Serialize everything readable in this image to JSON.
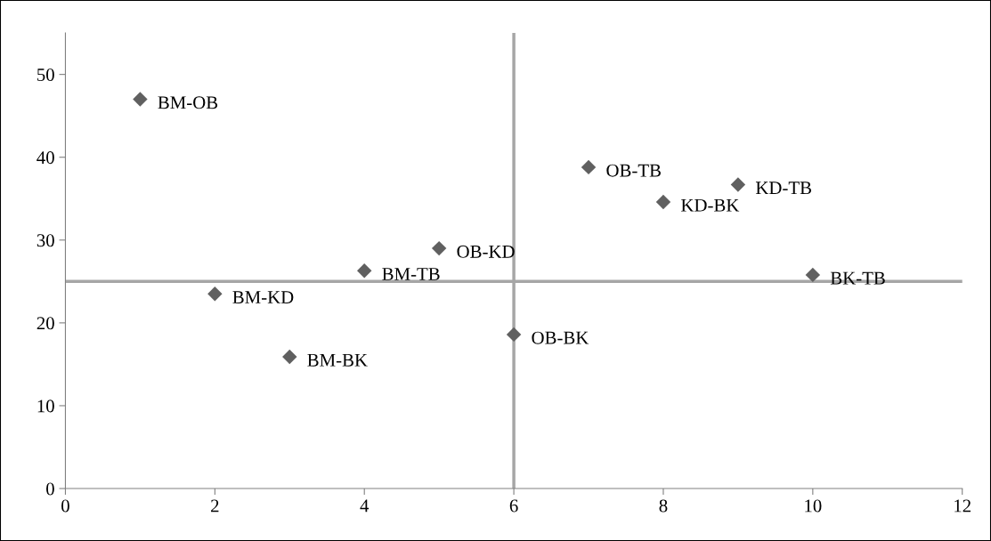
{
  "chart_data": {
    "type": "scatter",
    "x": [
      1,
      2,
      3,
      4,
      5,
      6,
      7,
      8,
      9,
      10
    ],
    "series": [
      {
        "color": "#606060",
        "values": [
          47,
          23.5,
          15.9,
          26.3,
          29.0,
          18.6,
          38.8,
          34.6,
          36.7,
          25.8
        ]
      }
    ],
    "marker": "diamond",
    "xlim": [
      0,
      12
    ],
    "xticks": [
      0,
      2,
      4,
      6,
      8,
      10,
      12
    ],
    "ylim": [
      0,
      55
    ],
    "yticks": [
      0,
      10,
      20,
      30,
      40,
      50
    ],
    "grid": false,
    "legend": false,
    "ref_lines": [
      {
        "axis": "x",
        "value": 6,
        "color": "#a6a6a6"
      },
      {
        "axis": "y",
        "value": 25,
        "color": "#a6a6a6"
      }
    ],
    "annotations": [
      {
        "text": "BM-OB",
        "x": 1,
        "y": 47
      },
      {
        "text": "BM-KD",
        "x": 2,
        "y": 23.5
      },
      {
        "text": "BM-BK",
        "x": 3,
        "y": 15.9
      },
      {
        "text": "BM-TB",
        "x": 4,
        "y": 26.3
      },
      {
        "text": "OB-KD",
        "x": 5,
        "y": 29.0
      },
      {
        "text": "OB-BK",
        "x": 6,
        "y": 18.6
      },
      {
        "text": "OB-TB",
        "x": 7,
        "y": 38.8
      },
      {
        "text": "KD-BK",
        "x": 8,
        "y": 34.6
      },
      {
        "text": "KD-TB",
        "x": 9,
        "y": 36.7
      },
      {
        "text": "BK-TB",
        "x": 10,
        "y": 25.8
      }
    ]
  }
}
